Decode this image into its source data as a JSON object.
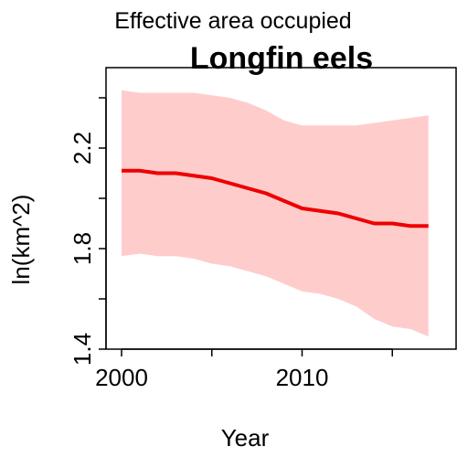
{
  "chart_data": {
    "type": "line",
    "subtitle": "Effective area occupied",
    "title": "Longfin eels",
    "xlabel": "Year",
    "ylabel": "ln(km^2)",
    "xlim": [
      2000,
      2017
    ],
    "ylim": [
      1.4,
      2.45
    ],
    "x_ticks": [
      2000,
      2005,
      2010,
      2015
    ],
    "x_tick_labels": [
      "2000",
      "",
      "2010",
      ""
    ],
    "y_ticks": [
      1.4,
      1.6,
      1.8,
      2.0,
      2.2,
      2.4
    ],
    "y_tick_labels": [
      "1.4",
      "",
      "1.8",
      "",
      "2.2",
      ""
    ],
    "grid": false,
    "colors": {
      "line": "#ee0000",
      "band": "#ffcccc"
    },
    "x": [
      2000,
      2001,
      2002,
      2003,
      2004,
      2005,
      2006,
      2007,
      2008,
      2009,
      2010,
      2011,
      2012,
      2013,
      2014,
      2015,
      2016,
      2017
    ],
    "series": [
      {
        "values": [
          2.11,
          2.11,
          2.1,
          2.1,
          2.09,
          2.08,
          2.06,
          2.04,
          2.02,
          1.99,
          1.96,
          1.95,
          1.94,
          1.92,
          1.9,
          1.9,
          1.89,
          1.89
        ],
        "upper": [
          2.43,
          2.42,
          2.42,
          2.42,
          2.42,
          2.41,
          2.4,
          2.38,
          2.35,
          2.31,
          2.29,
          2.29,
          2.29,
          2.29,
          2.3,
          2.31,
          2.32,
          2.33
        ],
        "lower": [
          1.77,
          1.78,
          1.77,
          1.77,
          1.76,
          1.74,
          1.73,
          1.71,
          1.69,
          1.66,
          1.63,
          1.62,
          1.6,
          1.57,
          1.52,
          1.49,
          1.48,
          1.45
        ]
      }
    ]
  }
}
